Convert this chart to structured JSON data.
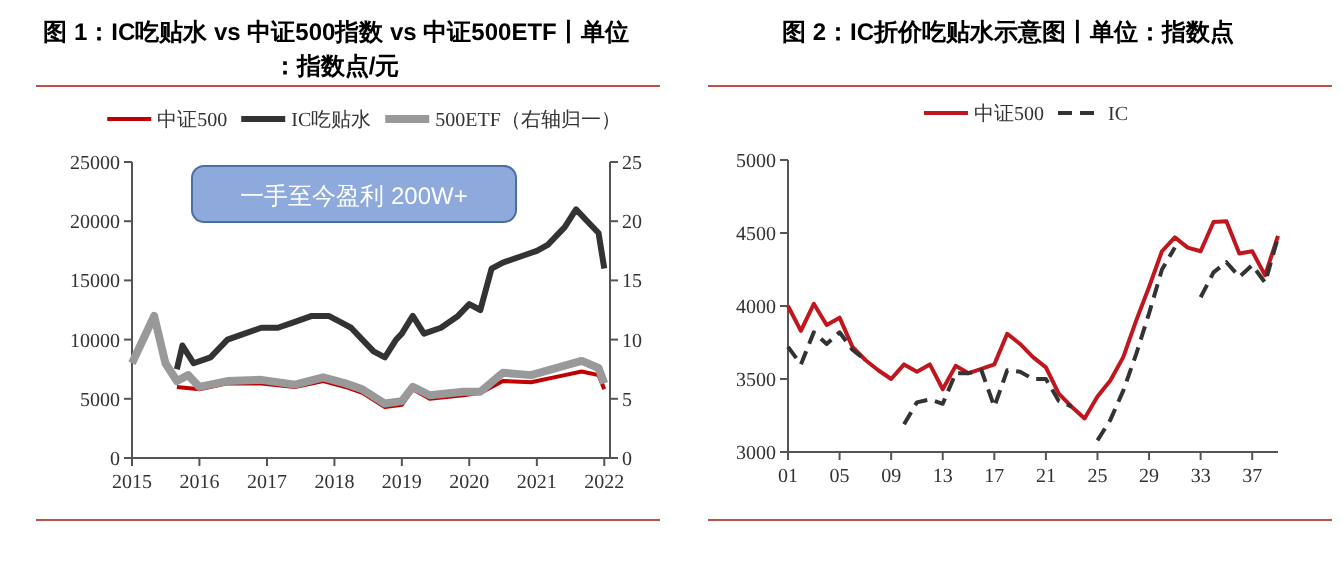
{
  "chart_data": [
    {
      "type": "line",
      "title": "图 1：IC吃贴水 vs 中证500指数 vs 中证500ETF丨单位：指数点/元",
      "xlim": [
        "2015-01-01",
        "2022-02-01"
      ],
      "xticks": [
        {
          "value": "2015-01-01",
          "label": "2015"
        },
        {
          "value": "2016-01-01",
          "label": "2016"
        },
        {
          "value": "2017-01-01",
          "label": "2017"
        },
        {
          "value": "2018-01-01",
          "label": "2018"
        },
        {
          "value": "2019-01-01",
          "label": "2019"
        },
        {
          "value": "2020-01-01",
          "label": "2020"
        },
        {
          "value": "2021-01-01",
          "label": "2021"
        },
        {
          "value": "2022-01-01",
          "label": "2022"
        }
      ],
      "ylim": [
        0,
        25000
      ],
      "yticks": [
        0,
        5000,
        10000,
        15000,
        20000,
        25000
      ],
      "y2lim": [
        0,
        25
      ],
      "y2ticks": [
        0,
        5,
        10,
        15,
        20,
        25
      ],
      "legend": "top",
      "grid": false,
      "annotations": [
        "一手至今盈利 200W+"
      ],
      "series": [
        {
          "name": "中证500",
          "color": "#c00000",
          "x": [
            "2015-09",
            "2016-01",
            "2016-06",
            "2016-12",
            "2017-06",
            "2017-11",
            "2018-03",
            "2018-06",
            "2018-10",
            "2019-01",
            "2019-03",
            "2019-06",
            "2019-12",
            "2020-03",
            "2020-07",
            "2020-12",
            "2021-06",
            "2021-09",
            "2021-12",
            "2022-01"
          ],
          "values": [
            6000,
            5800,
            6300,
            6300,
            6000,
            6500,
            6000,
            5500,
            4300,
            4500,
            5800,
            5000,
            5300,
            5500,
            6500,
            6400,
            7000,
            7300,
            7000,
            5800
          ]
        },
        {
          "name": "IC吃贴水",
          "color": "#333333",
          "x": [
            "2015-09",
            "2015-10",
            "2015-12",
            "2016-03",
            "2016-06",
            "2016-09",
            "2016-12",
            "2017-03",
            "2017-06",
            "2017-09",
            "2017-12",
            "2018-02",
            "2018-04",
            "2018-06",
            "2018-08",
            "2018-10",
            "2018-12",
            "2019-01",
            "2019-03",
            "2019-05",
            "2019-08",
            "2019-11",
            "2020-01",
            "2020-03",
            "2020-05",
            "2020-07",
            "2020-10",
            "2021-01",
            "2021-03",
            "2021-06",
            "2021-08",
            "2021-10",
            "2021-12",
            "2022-01"
          ],
          "values": [
            7500,
            9500,
            8000,
            8500,
            10000,
            10500,
            11000,
            11000,
            11500,
            12000,
            12000,
            11500,
            11000,
            10000,
            9000,
            8500,
            10000,
            10500,
            12000,
            10500,
            11000,
            12000,
            13000,
            12500,
            16000,
            16500,
            17000,
            17500,
            18000,
            19500,
            21000,
            20000,
            19000,
            16000
          ]
        },
        {
          "name": "500ETF（右轴归一）",
          "color": "#999999",
          "axis": "y2",
          "x": [
            "2015-01",
            "2015-05",
            "2015-07",
            "2015-09",
            "2015-11",
            "2016-01",
            "2016-06",
            "2016-12",
            "2017-06",
            "2017-11",
            "2018-03",
            "2018-06",
            "2018-10",
            "2019-01",
            "2019-03",
            "2019-06",
            "2019-12",
            "2020-03",
            "2020-07",
            "2020-12",
            "2021-06",
            "2021-09",
            "2021-12",
            "2022-01"
          ],
          "values": [
            8,
            12,
            8,
            6.5,
            7,
            6,
            6.5,
            6.6,
            6.2,
            6.8,
            6.3,
            5.8,
            4.6,
            4.8,
            6,
            5.3,
            5.6,
            5.6,
            7.2,
            7,
            7.8,
            8.2,
            7.6,
            6.3
          ]
        }
      ]
    },
    {
      "type": "line",
      "title": "图 2：IC折价吃贴水示意图丨单位：指数点",
      "categories": [
        "01",
        null,
        null,
        null,
        "05",
        null,
        null,
        null,
        "09",
        null,
        null,
        null,
        "13",
        null,
        null,
        null,
        "17",
        null,
        null,
        null,
        "21",
        null,
        null,
        null,
        "25",
        null,
        null,
        null,
        "29",
        null,
        null,
        null,
        "33",
        null,
        null,
        null,
        "37",
        null,
        null
      ],
      "ylim": [
        3000,
        5000
      ],
      "yticks": [
        3000,
        3500,
        4000,
        4500,
        5000
      ],
      "legend": "top",
      "grid": false,
      "series": [
        {
          "name": "中证500",
          "color": "#c0161e",
          "line_style": "solid",
          "values": [
            4000,
            3830,
            4015,
            3870,
            3920,
            3720,
            3630,
            3560,
            3500,
            3600,
            3550,
            3600,
            3430,
            3590,
            3540,
            3570,
            3600,
            3810,
            3740,
            3650,
            3580,
            3400,
            3310,
            3230,
            3380,
            3490,
            3650,
            3900,
            4130,
            4375,
            4470,
            4400,
            4375,
            4575,
            4580,
            4360,
            4375,
            4210,
            4480
          ]
        },
        {
          "name": "IC",
          "color": "#333333",
          "line_style": "dashed",
          "values": [
            3720,
            3600,
            3820,
            3740,
            3820,
            3700,
            3630,
            null,
            null,
            3190,
            3340,
            3360,
            3330,
            3540,
            3540,
            3560,
            3310,
            3560,
            3550,
            3500,
            3500,
            3350,
            3310,
            null,
            3080,
            3220,
            3420,
            3670,
            3950,
            4250,
            4400,
            null,
            4060,
            4230,
            4300,
            4200,
            4280,
            4160,
            4470
          ]
        }
      ]
    }
  ]
}
